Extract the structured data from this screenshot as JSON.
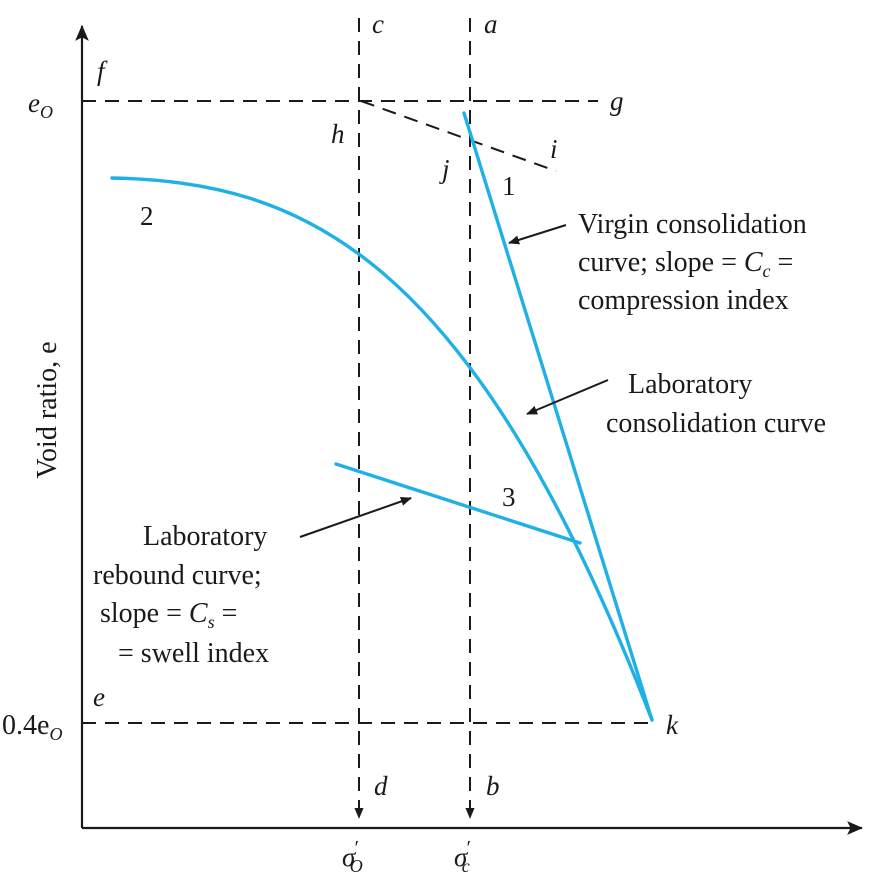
{
  "axes": {
    "y_label": "Void ratio, e",
    "y_tick_top": "e",
    "y_tick_top_sub": "O",
    "y_tick_bottom": "0.4e",
    "y_tick_bottom_sub": "O",
    "x_tick_sigma_o_base": "σ",
    "x_tick_sigma_o_sub": "O",
    "x_tick_sigma_c_base": "σ",
    "x_tick_sigma_c_sub": "c",
    "prime": "′"
  },
  "points": {
    "a": "a",
    "b": "b",
    "c": "c",
    "d": "d",
    "e": "e",
    "f": "f",
    "g": "g",
    "h": "h",
    "i": "i",
    "j": "j",
    "k": "k"
  },
  "curve_numbers": {
    "one": "1",
    "two": "2",
    "three": "3"
  },
  "annotations": {
    "virgin": {
      "line1": "Virgin consolidation",
      "line2_a": "curve; slope = ",
      "line2_var": "C",
      "line2_sub": "c",
      "line2_b": " =",
      "line3": "compression index"
    },
    "laboratory": {
      "line1": "Laboratory",
      "line2": "consolidation curve"
    },
    "rebound": {
      "line1": "Laboratory",
      "line2": "rebound curve;",
      "line3_a": "slope = ",
      "line3_var": "C",
      "line3_sub": "s",
      "line3_b": " =",
      "line4": "= swell index"
    }
  },
  "colors": {
    "curve": "#1fb0e6",
    "ink": "#1a1a1a",
    "background": "#ffffff"
  }
}
